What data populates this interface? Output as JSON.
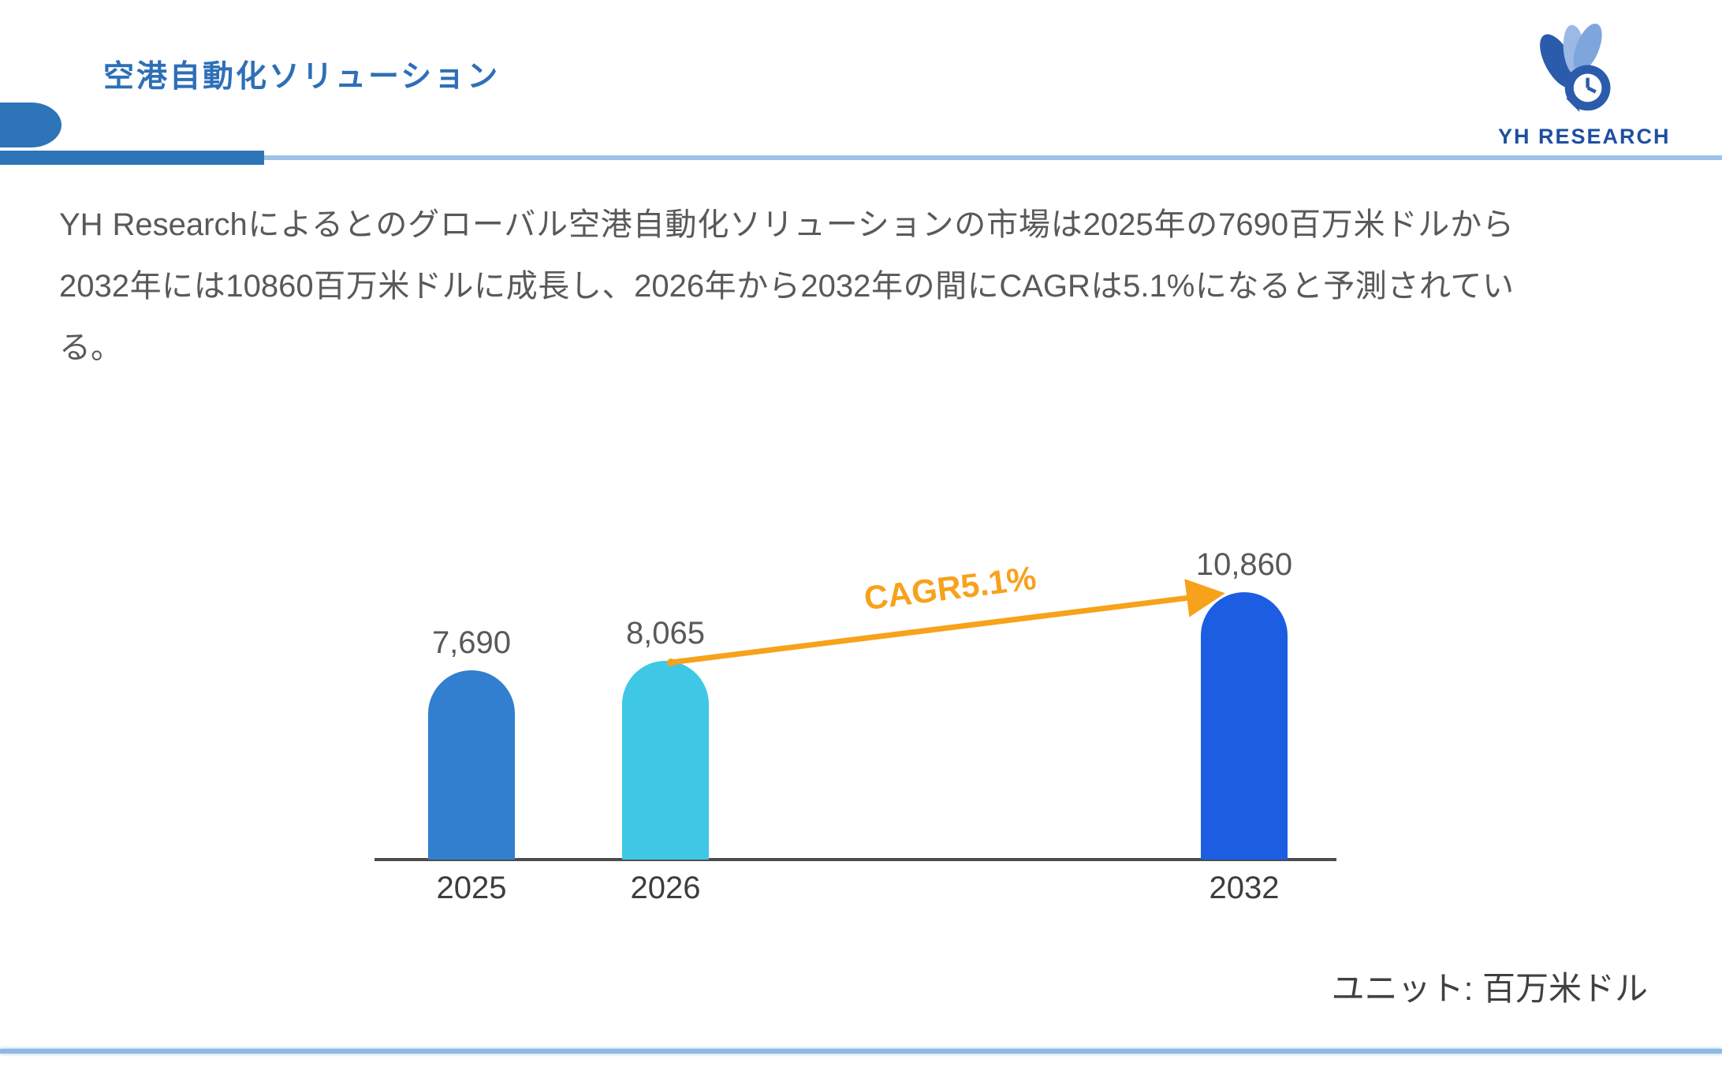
{
  "header": {
    "title": "空港自動化ソリューション",
    "brand": "YH RESEARCH"
  },
  "description": "YH Researchによるとのグローバル空港自動化ソリューションの市場は2025年の7690百万米ドルから2032年には10860百万米ドルに成長し、2026年から2032年の間にCAGRは5.1%になると予測されている。",
  "chart_data": {
    "type": "bar",
    "title": "",
    "categories": [
      "2025",
      "2026",
      "2032"
    ],
    "values": [
      7690,
      8065,
      10860
    ],
    "value_labels": [
      "7,690",
      "8,065",
      "10,860"
    ],
    "annotation": "CAGR5.1%",
    "unit_label": "ユニット: 百万米ドル",
    "xlabel": "",
    "ylabel": "",
    "ylim": [
      0,
      11600
    ],
    "grid": false,
    "legend": "none",
    "bar_colors": [
      "#317fce",
      "#3fc8e6",
      "#1c5de2"
    ],
    "axis_color": "#4d4d4d",
    "annotation_color": "#f7a21b"
  },
  "colors": {
    "accent_blue": "#2e74b8",
    "title_blue": "#2d6fb8",
    "header_thin_line": "#9dc3e6",
    "bottom_line": "#8fb9e2",
    "body_text_gray": "#595959",
    "logo_navy": "#1e4fa0",
    "logo_light_blue": "#7ea6dd",
    "arrow_orange": "#f7a21b"
  }
}
